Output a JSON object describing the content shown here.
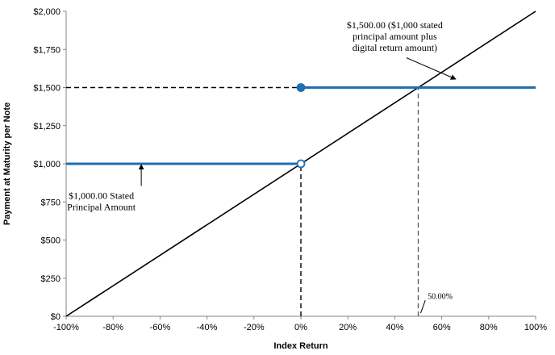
{
  "chart_data": {
    "type": "line",
    "xlabel": "Index Return",
    "ylabel": "Payment at Maturity per Note",
    "xlim": [
      -100,
      100
    ],
    "ylim": [
      0,
      2000
    ],
    "x_ticks": [
      -100,
      -80,
      -60,
      -40,
      -20,
      0,
      20,
      40,
      60,
      80,
      100
    ],
    "x_tick_labels": [
      "-100%",
      "-80%",
      "-60%",
      "-40%",
      "-20%",
      "0%",
      "20%",
      "40%",
      "60%",
      "80%",
      "100%"
    ],
    "y_ticks": [
      0,
      250,
      500,
      750,
      1000,
      1250,
      1500,
      1750,
      2000
    ],
    "y_tick_labels": [
      "$0",
      "$250",
      "$500",
      "$750",
      "$1,000",
      "$1,250",
      "$1,500",
      "$1,750",
      "$2,000"
    ],
    "grid": false,
    "series": [
      {
        "role": "index-return",
        "color": "#000000",
        "x": [
          -100,
          100
        ],
        "y": [
          0,
          2000
        ]
      },
      {
        "role": "payment-below",
        "color": "#1f6fb2",
        "x": [
          -100,
          0
        ],
        "y": [
          1000,
          1000
        ]
      },
      {
        "role": "payment-above",
        "color": "#1f6fb2",
        "x": [
          0,
          100
        ],
        "y": [
          1500,
          1500
        ]
      }
    ],
    "markers": [
      {
        "x": 0,
        "y": 1000,
        "style": "open",
        "color": "#1f6fb2"
      },
      {
        "x": 0,
        "y": 1500,
        "style": "filled",
        "color": "#1f6fb2"
      }
    ],
    "reference_lines": [
      {
        "kind": "horizontal-dashed",
        "y": 1500,
        "x_from": -100,
        "x_to": 0,
        "color": "#000000"
      },
      {
        "kind": "vertical-dashed",
        "x": 0,
        "y_from": 0,
        "y_to": 1000,
        "color": "#000000"
      },
      {
        "kind": "vertical-dashed",
        "x": 50,
        "y_from": 0,
        "y_to": 1500,
        "color": "#5a5f7a"
      }
    ],
    "annotations": [
      {
        "lines": [
          "$1,500.00 ($1,000 stated",
          "principal amount plus",
          "digital return amount)"
        ],
        "text_x": 40,
        "text_y": 1890,
        "arrow_from": [
          45,
          1695
        ],
        "arrow_to": [
          66,
          1555
        ]
      },
      {
        "lines": [
          "$1,000.00 Stated",
          "Principal Amount"
        ],
        "text_x": -85,
        "text_y": 770,
        "arrow_from": [
          -68,
          855
        ],
        "arrow_to": [
          -68,
          995
        ]
      },
      {
        "lines": [
          "50.00%"
        ],
        "text_x": 54,
        "text_y": 115,
        "arrow_from": [
          53,
          105
        ],
        "arrow_to": [
          51,
          20
        ],
        "small": true
      }
    ]
  }
}
